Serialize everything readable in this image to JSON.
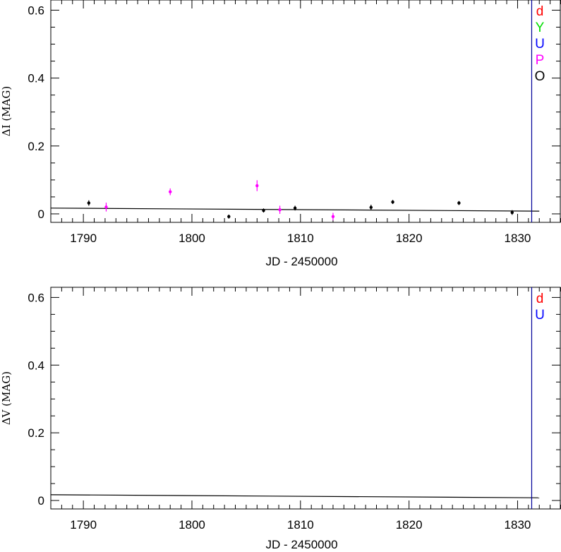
{
  "chart_data": [
    {
      "type": "scatter",
      "ylabel": "ΔI (MAG)",
      "xlabel": "JD - 2450000",
      "xlim": [
        1787,
        1834
      ],
      "ylim": [
        -0.025,
        0.63
      ],
      "xticks": [
        1790,
        1800,
        1810,
        1820,
        1830
      ],
      "yticks": [
        0,
        0.2,
        0.4,
        0.6
      ],
      "ytick_labels": [
        "0",
        "0.2",
        "0.4",
        "0.6"
      ],
      "legend": [
        {
          "label": "d",
          "color": "#ff0000"
        },
        {
          "label": "Y",
          "color": "#00dd00"
        },
        {
          "label": "U",
          "color": "#0000ff"
        },
        {
          "label": "P",
          "color": "#ff00ff"
        },
        {
          "label": "O",
          "color": "#000000"
        }
      ],
      "vline": {
        "x": 1831.3,
        "color": "#000099"
      },
      "model_line": {
        "x": [
          1787,
          1832
        ],
        "y": [
          0.017,
          0.008
        ]
      },
      "series": [
        {
          "name": "O",
          "color": "#000000",
          "points": [
            {
              "x": 1790.5,
              "y": 0.032,
              "err": 0.008
            },
            {
              "x": 1803.4,
              "y": -0.008,
              "err": 0.006
            },
            {
              "x": 1806.6,
              "y": 0.01,
              "err": 0.006
            },
            {
              "x": 1809.5,
              "y": 0.017,
              "err": 0.007
            },
            {
              "x": 1816.5,
              "y": 0.019,
              "err": 0.008
            },
            {
              "x": 1818.5,
              "y": 0.035,
              "err": 0.006
            },
            {
              "x": 1824.6,
              "y": 0.032,
              "err": 0.006
            },
            {
              "x": 1829.5,
              "y": 0.004,
              "err": 0.007
            }
          ]
        },
        {
          "name": "P",
          "color": "#ff00ff",
          "points": [
            {
              "x": 1792.1,
              "y": 0.02,
              "err": 0.013
            },
            {
              "x": 1798.0,
              "y": 0.065,
              "err": 0.01
            },
            {
              "x": 1806.0,
              "y": 0.083,
              "err": 0.016
            },
            {
              "x": 1808.1,
              "y": 0.012,
              "err": 0.012
            },
            {
              "x": 1813.0,
              "y": -0.008,
              "err": 0.011
            }
          ]
        }
      ]
    },
    {
      "type": "scatter",
      "ylabel": "ΔV (MAG)",
      "xlabel": "JD - 2450000",
      "xlim": [
        1787,
        1834
      ],
      "ylim": [
        -0.025,
        0.63
      ],
      "xticks": [
        1790,
        1800,
        1810,
        1820,
        1830
      ],
      "yticks": [
        0,
        0.2,
        0.4,
        0.6
      ],
      "ytick_labels": [
        "0",
        "0.2",
        "0.4",
        "0.6"
      ],
      "legend": [
        {
          "label": "d",
          "color": "#ff0000"
        },
        {
          "label": "U",
          "color": "#0000ff"
        }
      ],
      "vline": {
        "x": 1831.3,
        "color": "#000099"
      },
      "model_line": {
        "x": [
          1787,
          1832
        ],
        "y": [
          0.017,
          0.008
        ]
      },
      "series": []
    }
  ]
}
